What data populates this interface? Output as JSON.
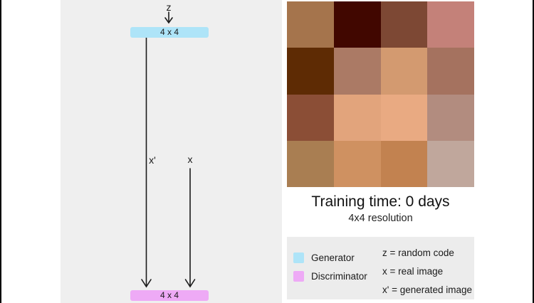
{
  "diagram": {
    "z_label": "z",
    "x_prime_label": "x'",
    "x_label": "x",
    "generator_block_label": "4 x 4",
    "discriminator_block_label": "4 x 4"
  },
  "caption": {
    "training_time": "Training time: 0 days",
    "resolution": "4x4 resolution"
  },
  "legend": {
    "generator_label": "Generator",
    "discriminator_label": "Discriminator",
    "z_definition": "z = random code",
    "x_definition": "x = real image",
    "x_prime_definition": "x' = generated image"
  },
  "colors": {
    "generator": "#aee4f8",
    "discriminator": "#eeaaf6",
    "panel_bg": "#efefef",
    "legend_bg": "#ececec",
    "line": "#1a1a1a"
  },
  "image_grid": {
    "rows": 4,
    "cols": 4,
    "pixels": [
      [
        "#a5744c",
        "#410700",
        "#7d4834",
        "#c48179"
      ],
      [
        "#5e2b04",
        "#ab7a65",
        "#d39a70",
        "#a5725f"
      ],
      [
        "#8b4e36",
        "#e2a47c",
        "#e9aa82",
        "#b28c7f"
      ],
      [
        "#a97e52",
        "#cf9161",
        "#c28250",
        "#c0a79c"
      ]
    ]
  }
}
